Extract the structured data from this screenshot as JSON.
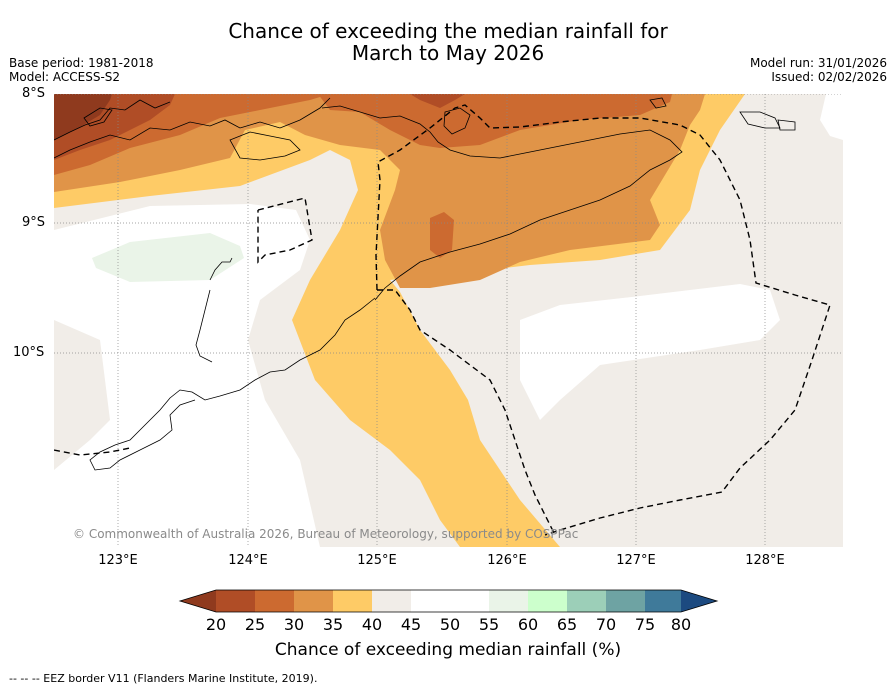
{
  "title": {
    "line1": "Chance of exceeding the median rainfall for",
    "line2": "March to May 2026"
  },
  "meta": {
    "base_period": "Base period: 1981-2018",
    "model": "Model: ACCESS-S2",
    "model_run": "Model run: 31/01/2026",
    "issued": "Issued: 02/02/2026"
  },
  "axes": {
    "latitudes": [
      "8°S",
      "9°S",
      "10°S"
    ],
    "longitudes": [
      "123°E",
      "124°E",
      "125°E",
      "126°E",
      "127°E",
      "128°E"
    ]
  },
  "copyright": "© Commonwealth of Australia 2026, Bureau of Meteorology, supported by COSPPac",
  "colorbar": {
    "label": "Chance of exceeding median rainfall (%)",
    "ticks": [
      "20",
      "25",
      "30",
      "35",
      "40",
      "45",
      "50",
      "55",
      "60",
      "65",
      "70",
      "75",
      "80"
    ],
    "colors": {
      "under": "#8f3a1e",
      "c20_25": "#b04d26",
      "c25_30": "#cc6a30",
      "c30_35": "#e09448",
      "c35_40": "#fecb66",
      "c40_45": "#f1ede8",
      "c45_50": "#ffffff",
      "c50_55": "#ffffff",
      "c55_60": "#eaf4e8",
      "c60_65": "#ccffcc",
      "c65_70": "#9ccfb8",
      "c70_75": "#6ea3a3",
      "c75_80": "#3f7a9a",
      "over": "#1c4a80"
    }
  },
  "legend_footer": "-- -- -- EEZ border V11 (Flanders Marine Institute, 2019)."
}
